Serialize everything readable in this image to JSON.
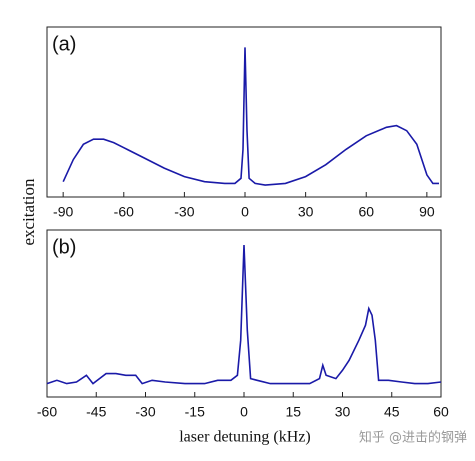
{
  "chart_data": [
    {
      "type": "line",
      "label": "(a)",
      "ylabel": "excitation",
      "color": "#1a1aa8",
      "x": [
        -90,
        -85,
        -80,
        -75,
        -70,
        -65,
        -60,
        -50,
        -40,
        -30,
        -20,
        -10,
        -5,
        -2,
        -1,
        0,
        1,
        2,
        5,
        10,
        20,
        30,
        40,
        50,
        60,
        70,
        75,
        80,
        85,
        90,
        93,
        96
      ],
      "values": [
        0.09,
        0.22,
        0.31,
        0.34,
        0.34,
        0.32,
        0.29,
        0.23,
        0.17,
        0.12,
        0.09,
        0.08,
        0.08,
        0.11,
        0.28,
        0.88,
        0.39,
        0.11,
        0.08,
        0.07,
        0.08,
        0.12,
        0.19,
        0.28,
        0.36,
        0.41,
        0.42,
        0.39,
        0.31,
        0.13,
        0.08,
        0.08
      ],
      "xlim": [
        -98,
        97
      ],
      "xticks": [
        -90,
        -60,
        -30,
        0,
        30,
        60,
        90
      ],
      "ylim": [
        0,
        1
      ]
    },
    {
      "type": "line",
      "label": "(b)",
      "xlabel": "laser detuning (kHz)",
      "color": "#1a1aa8",
      "x": [
        -60,
        -57,
        -54,
        -51,
        -48,
        -46,
        -44,
        -42,
        -39,
        -36,
        -33,
        -31,
        -28,
        -24,
        -18,
        -12,
        -8,
        -4,
        -2,
        -1,
        0,
        1,
        2,
        4,
        8,
        15,
        20,
        23,
        24,
        25,
        28,
        30,
        32,
        35,
        37,
        38,
        39,
        40,
        41,
        44,
        48,
        52,
        56,
        60
      ],
      "values": [
        0.08,
        0.1,
        0.08,
        0.09,
        0.13,
        0.08,
        0.11,
        0.14,
        0.14,
        0.13,
        0.13,
        0.08,
        0.1,
        0.09,
        0.08,
        0.08,
        0.1,
        0.1,
        0.13,
        0.34,
        0.91,
        0.4,
        0.11,
        0.1,
        0.08,
        0.08,
        0.08,
        0.11,
        0.19,
        0.13,
        0.11,
        0.16,
        0.22,
        0.34,
        0.43,
        0.53,
        0.49,
        0.34,
        0.1,
        0.1,
        0.09,
        0.08,
        0.08,
        0.09
      ],
      "xlim": [
        -60,
        60
      ],
      "xticks": [
        -60,
        -45,
        -30,
        -15,
        0,
        15,
        30,
        45,
        60
      ],
      "ylim": [
        0,
        1
      ]
    }
  ],
  "watermark": "知乎 @进击的钢弹"
}
